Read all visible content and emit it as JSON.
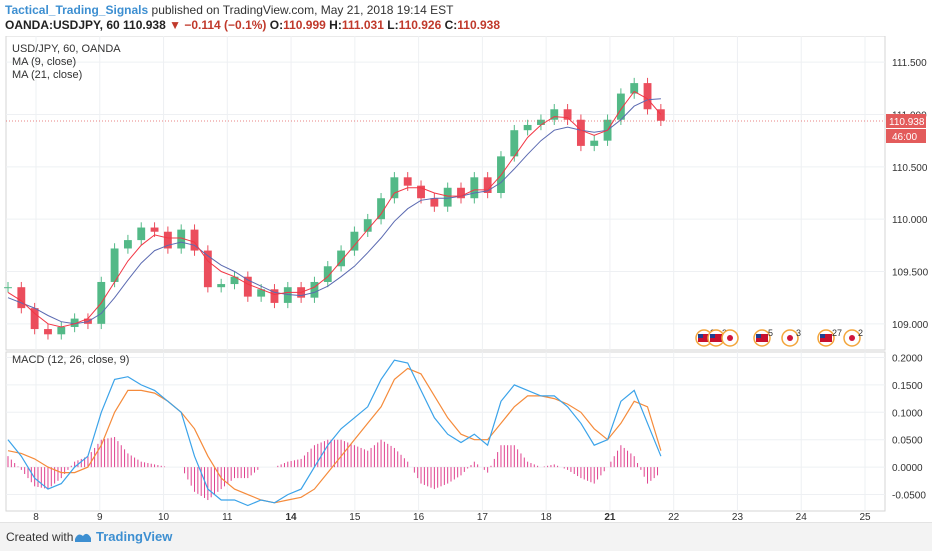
{
  "header": {
    "author": "Tactical_Trading_Signals",
    "published_text": "published on TradingView.com, May 21, 2018 19:14 EST",
    "symbol": "OANDA:USDJPY, 60",
    "last": "110.938",
    "change": "−0.114 (−0.1%)",
    "o_label": "O:",
    "o": "110.999",
    "h_label": "H:",
    "h": "111.031",
    "l_label": "L:",
    "l": "110.926",
    "c_label": "C:",
    "c": "110.938"
  },
  "footer": {
    "created_with": "Created with",
    "brand": "TradingView"
  },
  "colors": {
    "up": "#53b987",
    "down": "#eb4d5c",
    "ma9": "#f23645",
    "ma21": "#5b6ab1",
    "macd": "#3ba3e9",
    "signal": "#f58b3b",
    "hist": "#e0418e",
    "price_line": "#e35b5b"
  },
  "chart_data": [
    {
      "type": "candlestick",
      "title": "USD/JPY, 60, OANDA",
      "legend": [
        "MA (9, close)",
        "MA (21, close)"
      ],
      "ylim": [
        108.75,
        111.75
      ],
      "y_ticks": [
        "109.000",
        "109.500",
        "110.000",
        "110.500",
        "111.000",
        "111.500"
      ],
      "x_ticks": [
        "8",
        "9",
        "10",
        "11",
        "14",
        "15",
        "16",
        "17",
        "18",
        "21",
        "22",
        "23",
        "24",
        "25"
      ],
      "last_price": "110.938",
      "countdown": "46:00",
      "closes": [
        109.35,
        109.15,
        108.95,
        108.9,
        108.97,
        109.05,
        109.0,
        109.4,
        109.72,
        109.8,
        109.92,
        109.88,
        109.72,
        109.9,
        109.7,
        109.35,
        109.38,
        109.45,
        109.26,
        109.33,
        109.2,
        109.35,
        109.25,
        109.4,
        109.55,
        109.7,
        109.88,
        110.0,
        110.2,
        110.4,
        110.32,
        110.2,
        110.12,
        110.3,
        110.2,
        110.4,
        110.25,
        110.6,
        110.85,
        110.9,
        110.95,
        111.05,
        110.95,
        110.7,
        110.75,
        110.95,
        111.2,
        111.3,
        111.05,
        110.94
      ],
      "series": [
        {
          "name": "MA (9, close)",
          "values": [
            109.3,
            109.22,
            109.1,
            109.0,
            108.97,
            109.0,
            109.05,
            109.2,
            109.4,
            109.6,
            109.75,
            109.85,
            109.82,
            109.82,
            109.78,
            109.6,
            109.5,
            109.45,
            109.38,
            109.33,
            109.28,
            109.3,
            109.3,
            109.35,
            109.45,
            109.6,
            109.75,
            109.9,
            110.05,
            110.25,
            110.3,
            110.3,
            110.25,
            110.22,
            110.22,
            110.28,
            110.28,
            110.42,
            110.6,
            110.78,
            110.9,
            110.98,
            110.97,
            110.85,
            110.8,
            110.85,
            111.05,
            111.22,
            111.15,
            111.0
          ]
        },
        {
          "name": "MA (21, close)",
          "values": [
            109.25,
            109.2,
            109.15,
            109.08,
            109.02,
            109.0,
            109.02,
            109.1,
            109.25,
            109.42,
            109.58,
            109.7,
            109.75,
            109.78,
            109.75,
            109.65,
            109.56,
            109.5,
            109.42,
            109.36,
            109.3,
            109.28,
            109.27,
            109.3,
            109.36,
            109.45,
            109.55,
            109.68,
            109.82,
            109.98,
            110.1,
            110.18,
            110.2,
            110.2,
            110.22,
            110.25,
            110.27,
            110.35,
            110.48,
            110.62,
            110.75,
            110.85,
            110.88,
            110.85,
            110.83,
            110.85,
            110.95,
            111.08,
            111.14,
            111.15
          ]
        }
      ]
    },
    {
      "type": "line",
      "title": "MACD (12, 26, close, 9)",
      "ylim": [
        -0.08,
        0.21
      ],
      "y_ticks": [
        "0.2000",
        "0.1500",
        "0.1000",
        "0.0500",
        "0.0000",
        "-0.0500"
      ],
      "series": [
        {
          "name": "MACD",
          "values": [
            0.05,
            0.02,
            -0.02,
            -0.04,
            -0.03,
            0.0,
            0.02,
            0.1,
            0.16,
            0.165,
            0.15,
            0.14,
            0.12,
            0.1,
            0.02,
            -0.04,
            -0.06,
            -0.06,
            -0.07,
            -0.06,
            -0.065,
            -0.05,
            -0.04,
            0.0,
            0.04,
            0.07,
            0.09,
            0.11,
            0.16,
            0.195,
            0.19,
            0.14,
            0.09,
            0.06,
            0.045,
            0.06,
            0.04,
            0.12,
            0.15,
            0.14,
            0.13,
            0.13,
            0.11,
            0.08,
            0.04,
            0.05,
            0.12,
            0.14,
            0.08,
            0.02
          ]
        },
        {
          "name": "Signal",
          "values": [
            0.03,
            0.025,
            0.015,
            0.0,
            -0.01,
            -0.01,
            0.0,
            0.04,
            0.1,
            0.14,
            0.14,
            0.135,
            0.12,
            0.1,
            0.07,
            0.02,
            -0.02,
            -0.04,
            -0.05,
            -0.06,
            -0.065,
            -0.06,
            -0.055,
            -0.04,
            -0.01,
            0.02,
            0.05,
            0.08,
            0.11,
            0.16,
            0.18,
            0.17,
            0.13,
            0.09,
            0.06,
            0.05,
            0.05,
            0.08,
            0.11,
            0.13,
            0.13,
            0.125,
            0.115,
            0.1,
            0.07,
            0.05,
            0.08,
            0.12,
            0.11,
            0.03
          ]
        },
        {
          "name": "Histogram",
          "values": [
            0.02,
            -0.005,
            -0.035,
            -0.04,
            -0.02,
            0.01,
            0.02,
            0.05,
            0.055,
            0.025,
            0.01,
            0.005,
            0.0,
            0.0,
            -0.045,
            -0.06,
            -0.04,
            -0.02,
            -0.02,
            0.0,
            0.0,
            0.01,
            0.015,
            0.04,
            0.05,
            0.05,
            0.04,
            0.03,
            0.05,
            0.035,
            0.01,
            -0.03,
            -0.04,
            -0.03,
            -0.015,
            0.01,
            -0.01,
            0.04,
            0.04,
            0.01,
            0.0,
            0.005,
            -0.005,
            -0.02,
            -0.03,
            0.0,
            0.04,
            0.02,
            -0.03,
            -0.01
          ]
        }
      ]
    }
  ],
  "events": [
    {
      "icon": "us-flag-icon",
      "count": "2"
    },
    {
      "icon": "us-flag-icon",
      "count": "3"
    },
    {
      "icon": "jp-flag-icon",
      "count": ""
    },
    {
      "icon": "us-flag-icon",
      "count": "5"
    },
    {
      "icon": "jp-flag-icon",
      "count": "3"
    },
    {
      "icon": "us-flag-icon",
      "count": "27"
    },
    {
      "icon": "jp-flag-icon",
      "count": "2"
    }
  ]
}
